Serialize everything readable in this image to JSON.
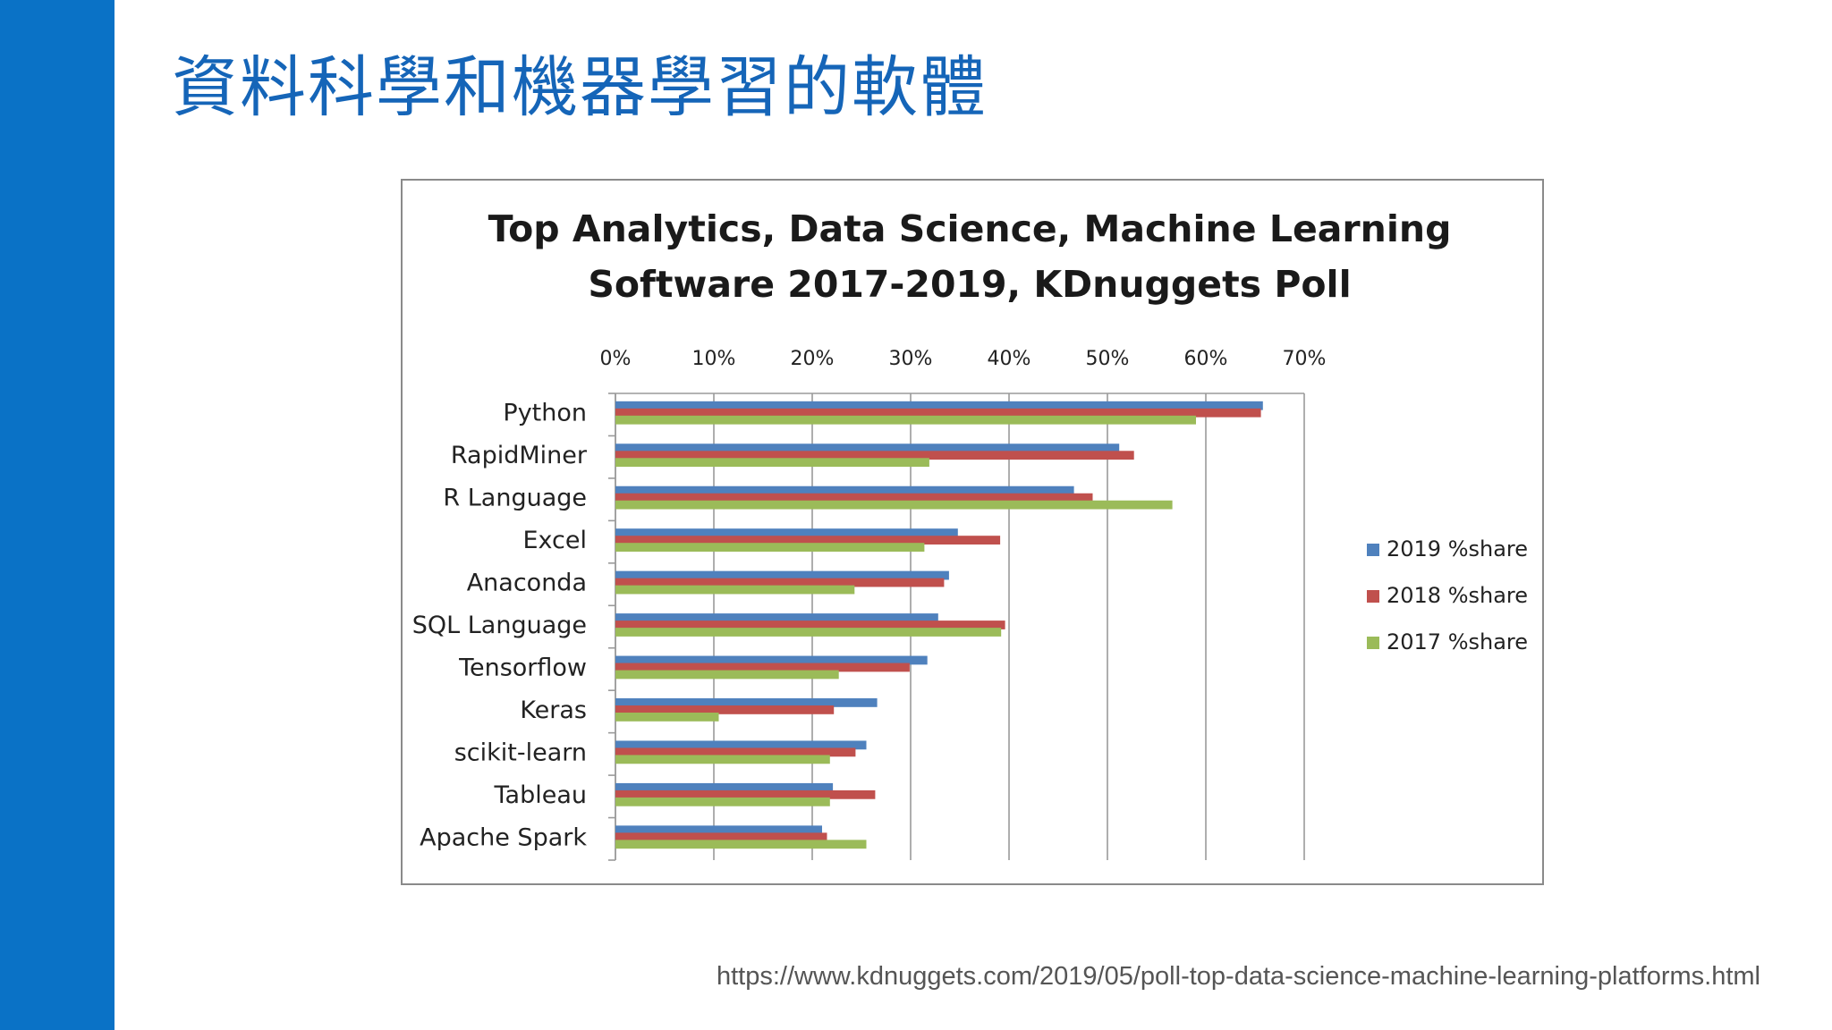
{
  "slide": {
    "title": "資料科學和機器學習的軟體",
    "source_url": "https://www.kdnuggets.com/2019/05/poll-top-data-science-machine-learning-platforms.html",
    "accent_color": "#0a72c6",
    "title_color": "#1565b8"
  },
  "chart_data": {
    "type": "bar",
    "orientation": "horizontal",
    "title_lines": [
      "Top Analytics, Data Science, Machine Learning",
      "Software 2017-2019,  KDnuggets Poll"
    ],
    "categories": [
      "Python",
      "RapidMiner",
      "R Language",
      "Excel",
      "Anaconda",
      "SQL Language",
      "Tensorflow",
      "Keras",
      "scikit-learn",
      "Tableau",
      "Apache Spark"
    ],
    "series": [
      {
        "name": "2019 %share",
        "color": "#4f81bd",
        "values": [
          65.8,
          51.2,
          46.6,
          34.8,
          33.9,
          32.8,
          31.7,
          26.6,
          25.5,
          22.1,
          21.0
        ]
      },
      {
        "name": "2018 %share",
        "color": "#c0504d",
        "values": [
          65.6,
          52.7,
          48.5,
          39.1,
          33.4,
          39.6,
          29.9,
          22.2,
          24.4,
          26.4,
          21.5
        ]
      },
      {
        "name": "2017 %share",
        "color": "#9bbb59",
        "values": [
          59.0,
          31.9,
          56.6,
          31.4,
          24.3,
          39.2,
          22.7,
          10.5,
          21.8,
          21.8,
          25.5
        ]
      }
    ],
    "xlim": [
      0,
      70
    ],
    "xticks": [
      "0%",
      "10%",
      "20%",
      "30%",
      "40%",
      "50%",
      "60%",
      "70%"
    ],
    "x_axis_position": "top",
    "grid": true,
    "legend_position": "right"
  }
}
